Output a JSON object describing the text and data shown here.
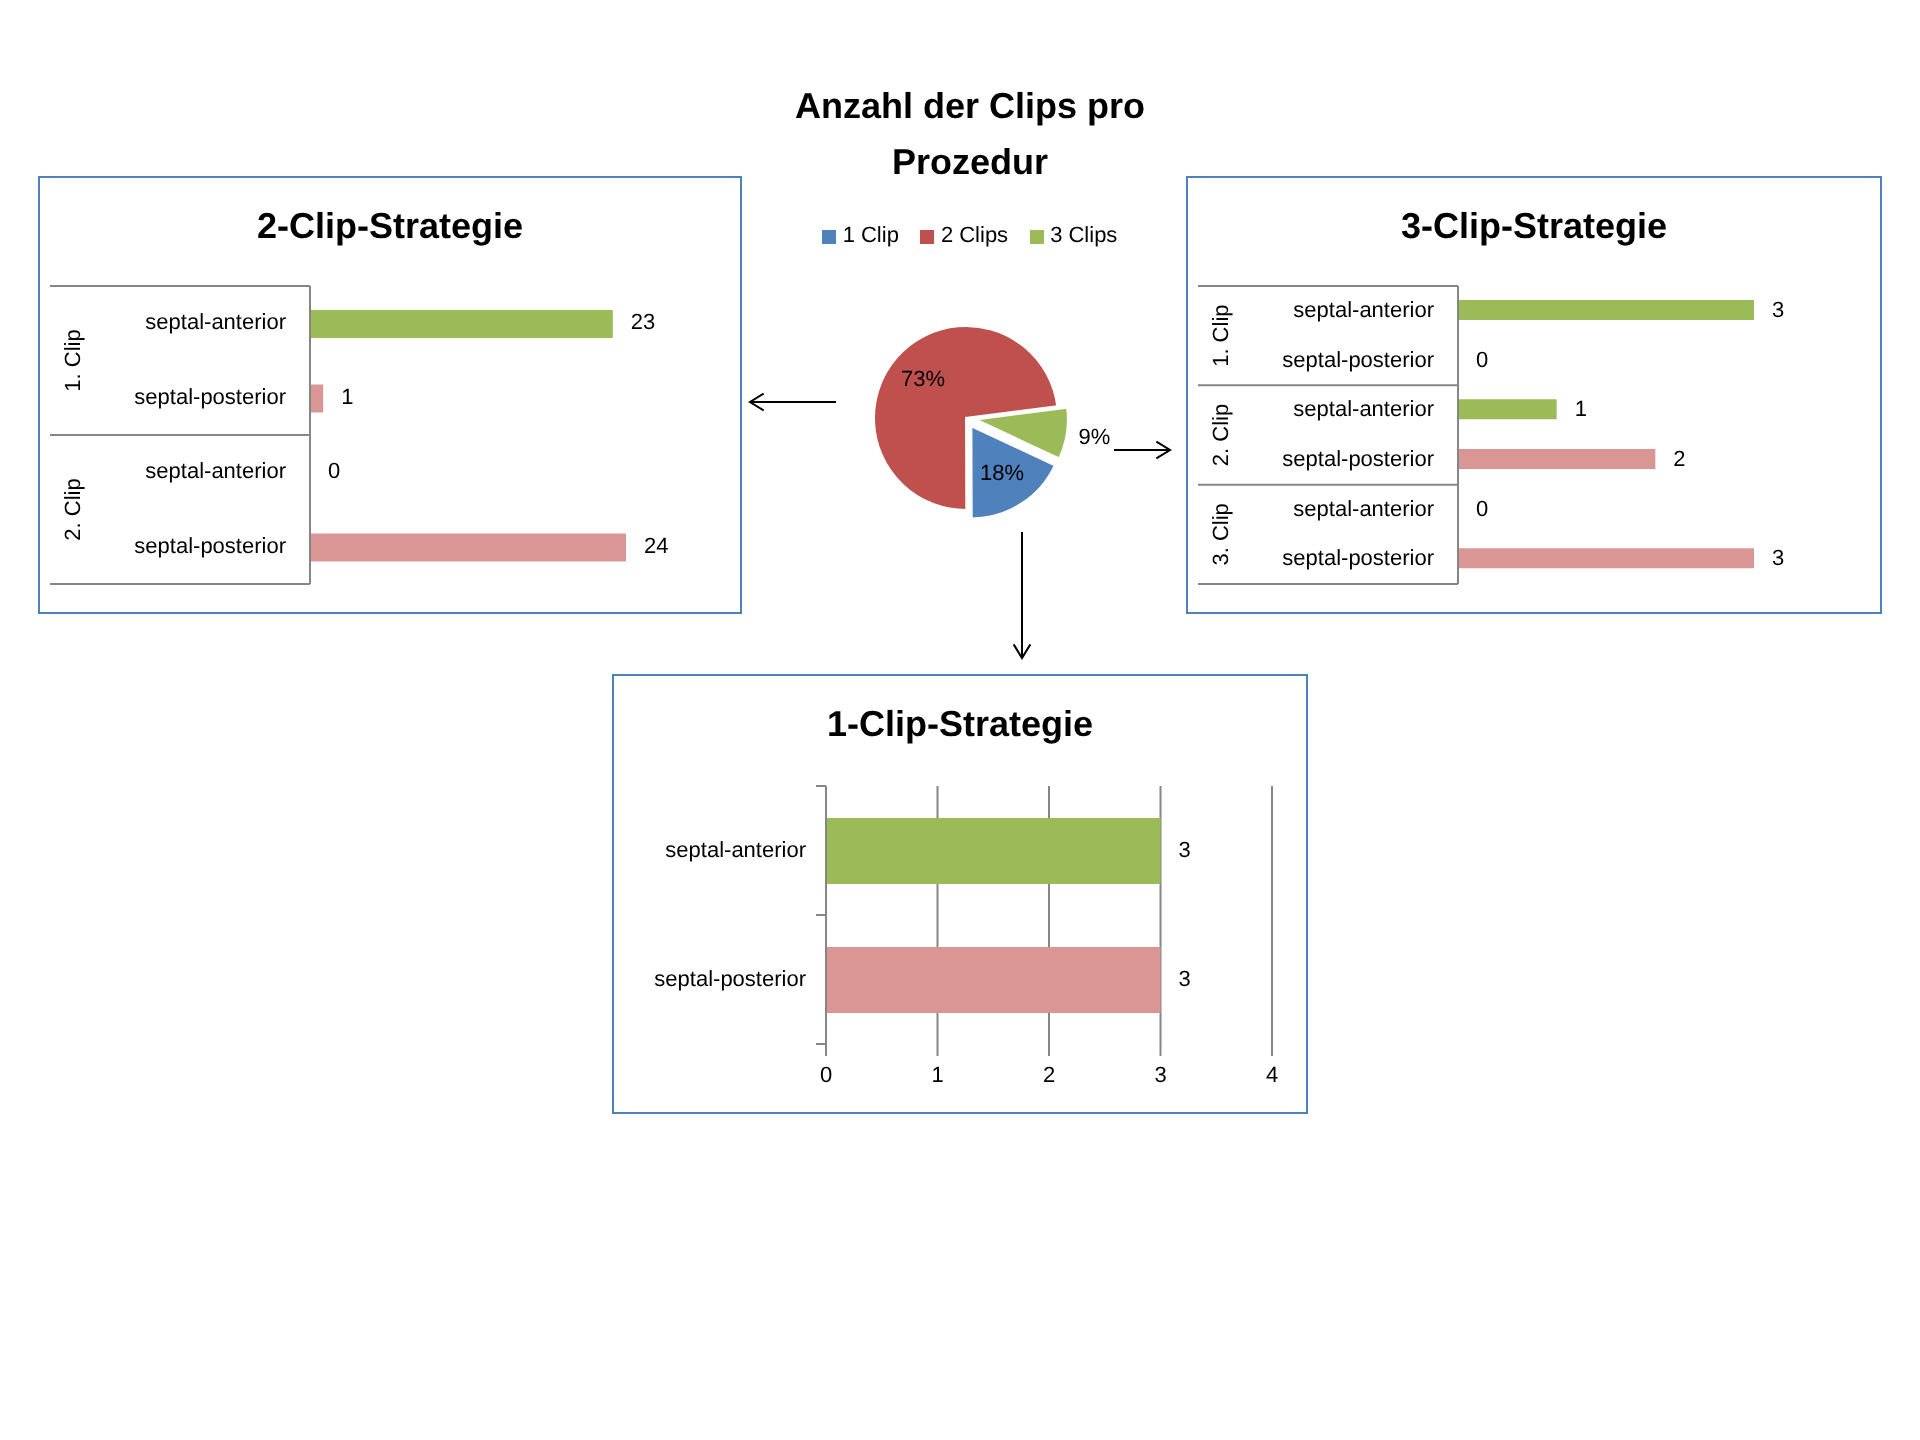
{
  "chart_data": [
    {
      "type": "pie",
      "title": "Anzahl der Clips pro Prozedur",
      "categories": [
        "1 Clip",
        "2 Clips",
        "3 Clips"
      ],
      "values": [
        18,
        73,
        9
      ],
      "colors": [
        "#4f81bd",
        "#c0504d",
        "#9bbb59"
      ],
      "value_labels": [
        "18%",
        "73%",
        "9%"
      ],
      "legend": "top"
    },
    {
      "type": "bar",
      "orientation": "horizontal",
      "title": "2-Clip-Strategie",
      "categories": [
        "septal-anterior",
        "septal-posterior",
        "septal-anterior",
        "septal-posterior"
      ],
      "values": [
        23,
        1,
        0,
        24
      ],
      "colors": [
        "#9bbb59",
        "#d99694",
        "#9bbb59",
        "#d99694"
      ],
      "annotations": [
        "1. Clip",
        "2. Clip"
      ],
      "data_labels": true,
      "tick_labels": "y"
    },
    {
      "type": "bar",
      "orientation": "horizontal",
      "title": "3-Clip-Strategie",
      "categories": [
        "septal-anterior",
        "septal-posterior",
        "septal-anterior",
        "septal-posterior",
        "septal-anterior",
        "septal-posterior"
      ],
      "values": [
        3,
        0,
        1,
        2,
        0,
        3
      ],
      "colors": [
        "#9bbb59",
        "#d99694",
        "#9bbb59",
        "#d99694",
        "#9bbb59",
        "#d99694"
      ],
      "annotations": [
        "1. Clip",
        "2. Clip",
        "3. Clip"
      ],
      "data_labels": true,
      "tick_labels": "y"
    },
    {
      "type": "bar",
      "orientation": "horizontal",
      "title": "1-Clip-Strategie",
      "categories": [
        "septal-anterior",
        "septal-posterior"
      ],
      "values": [
        3,
        3
      ],
      "colors": [
        "#9bbb59",
        "#d99694"
      ],
      "xlim": [
        0,
        4
      ],
      "xticks": [
        0,
        1,
        2,
        3,
        4
      ],
      "grid": "x",
      "data_labels": true
    }
  ]
}
